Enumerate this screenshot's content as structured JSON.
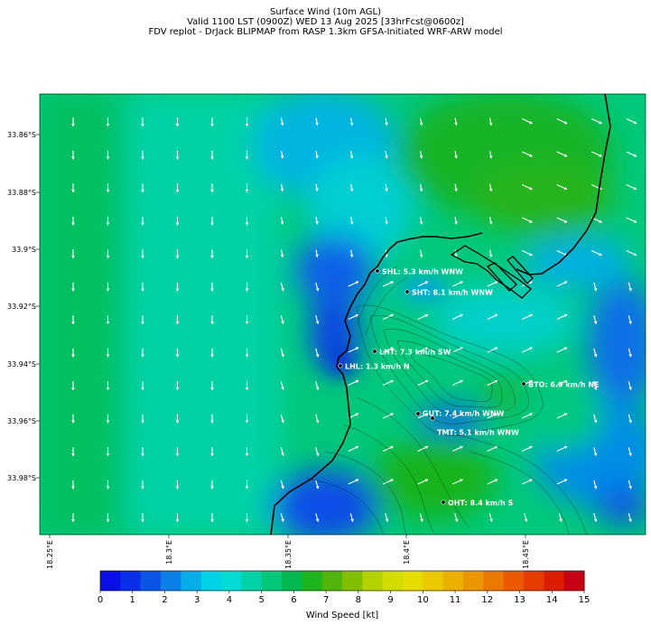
{
  "title": {
    "line1": "Surface Wind (10m AGL)",
    "line2": "Valid 1100 LST (0900Z) WED 13 Aug 2025 [33hrFcst@0600z]",
    "line3": "FDV replot - DrJack BLIPMAP from RASP 1.3km GFSA-Initiated WRF-ARW model"
  },
  "map": {
    "lat_labels": [
      "33.86°S",
      "33.88°S",
      "33.9°S",
      "33.92°S",
      "33.94°S",
      "33.96°S",
      "33.98°S"
    ],
    "lon_labels": [
      "18.25°E",
      "18.3°E",
      "18.35°E",
      "18.4°E",
      "18.45°E"
    ],
    "stations": [
      {
        "label": "SHL: 5.3 km/h WNW"
      },
      {
        "label": "SHT: 8.1 km/h WNW"
      },
      {
        "label": "LHT: 7.3 km/h SW"
      },
      {
        "label": "LHL: 1.3 km/h N"
      },
      {
        "label": "BTO: 6.9 km/h NE"
      },
      {
        "label": "GUT: 7.4 km/h WNW"
      },
      {
        "label": "TMT: 5.1 km/h WNW"
      },
      {
        "label": "OHT: 8.4 km/h S"
      }
    ]
  },
  "colorbar": {
    "label": "Wind Speed [kt]",
    "ticks": [
      "0",
      "1",
      "2",
      "3",
      "4",
      "5",
      "6",
      "7",
      "8",
      "9",
      "10",
      "11",
      "12",
      "13",
      "14",
      "15"
    ],
    "colors": [
      "#0a0ee8",
      "#0a2fe8",
      "#0a55e8",
      "#0a80e8",
      "#05aee8",
      "#00d2e6",
      "#00dcd4",
      "#00d2a8",
      "#00c878",
      "#00b850",
      "#1eb41e",
      "#50b40a",
      "#82be00",
      "#b4d200",
      "#d2dc00",
      "#e6dc00",
      "#ebc800",
      "#ebb000",
      "#eb9600",
      "#eb7800",
      "#eb5a00",
      "#e63c00",
      "#dc1e00",
      "#c80014"
    ]
  }
}
